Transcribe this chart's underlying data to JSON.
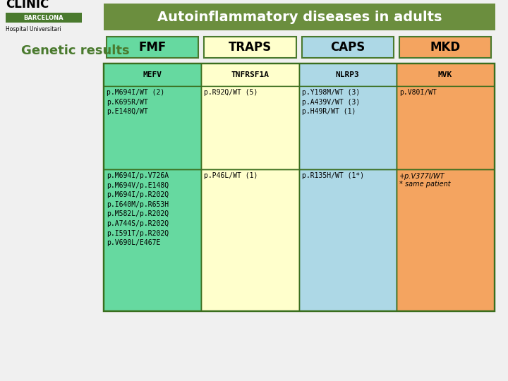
{
  "title": "Autoinflammatory diseases in adults",
  "title_bg": "#6b8e3e",
  "title_color": "#ffffff",
  "subtitle": "Genetic results",
  "subtitle_color": "#4a7a2e",
  "bg_color": "#f0f0f0",
  "columns": [
    "FMF",
    "TRAPS",
    "CAPS",
    "MKD"
  ],
  "col_header_colors": [
    "#66d9a0",
    "#ffffcc",
    "#add8e6",
    "#f4a460"
  ],
  "gene_row": [
    "MEFV",
    "TNFRSF1A",
    "NLRP3",
    "MVK"
  ],
  "gene_bg": [
    "#66d9a0",
    "#ffffcc",
    "#add8e6",
    "#f4a460"
  ],
  "row1_data": [
    "p.M694I/WT (2)\np.K695R/WT\np.E148Q/WT",
    "p.R92Q/WT (5)",
    "p.Y198M/WT (3)\np.A439V/WT (3)\np.H49R/WT (1)",
    "p.V80I/WT"
  ],
  "row1_bg": [
    "#66d9a0",
    "#ffffcc",
    "#add8e6",
    "#f4a460"
  ],
  "row2_data": [
    "p.M694I/p.V726A\np.M694V/p.E148Q\np.M694I/p.R202Q\np.I640M/p.R653H\np.M582L/p.R202Q\np.A744S/p.R202Q\np.I591T/p.R202Q\np.V690L/E467E",
    "p.P46L/WT (1)",
    "p.R135H/WT (1*)",
    "+p.V377I/WT\n* same patient"
  ],
  "row2_bg": [
    "#66d9a0",
    "#ffffcc",
    "#add8e6",
    "#f4a460"
  ],
  "table_border_color": "#3a6e1e",
  "header_box_border": "#4a7a2e",
  "logo_text1": "CLÍNIC",
  "logo_text2": "BARCELONA",
  "logo_text3": "Hospital Universitari",
  "logo_bg": "#4a7a2e"
}
